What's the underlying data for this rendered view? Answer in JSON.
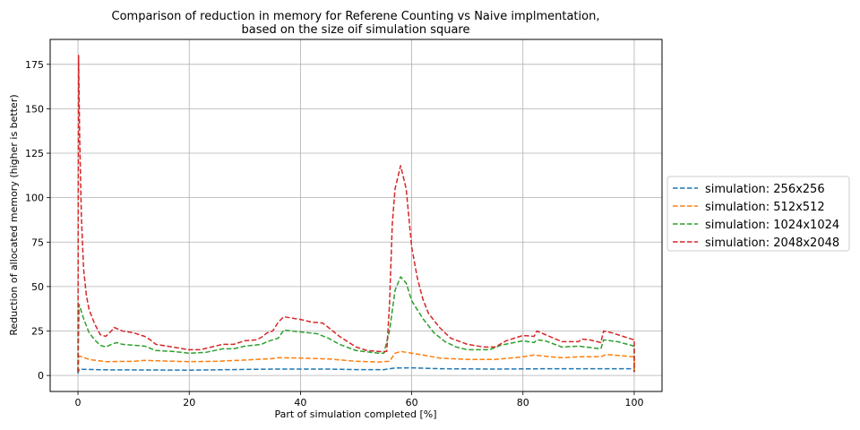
{
  "chart_data": {
    "type": "line",
    "title": [
      "Comparison of reduction in memory for Referene Counting vs Naive implmentation,",
      "based on the size oif simulation square"
    ],
    "xlabel": "Part of simulation completed [%]",
    "ylabel": "Reduction of allocated memory (higher is better)",
    "xlim": [
      -5,
      105
    ],
    "ylim": [
      -9,
      189
    ],
    "xticks": [
      0,
      20,
      40,
      60,
      80,
      100
    ],
    "yticks": [
      0,
      25,
      50,
      75,
      100,
      125,
      150,
      175
    ],
    "grid": true,
    "legend_position": "outside-right",
    "line_style": "dashed",
    "series": [
      {
        "name": "simulation: 256x256",
        "color": "#1f77b4",
        "points": [
          [
            0,
            1
          ],
          [
            0.2,
            3.5
          ],
          [
            5,
            3.2
          ],
          [
            20,
            3
          ],
          [
            35,
            3.6
          ],
          [
            45,
            3.6
          ],
          [
            50,
            3.3
          ],
          [
            55,
            3.3
          ],
          [
            57,
            4.2
          ],
          [
            60,
            4.3
          ],
          [
            65,
            3.8
          ],
          [
            75,
            3.6
          ],
          [
            85,
            3.8
          ],
          [
            95,
            3.8
          ],
          [
            100,
            3.8
          ],
          [
            100,
            2
          ]
        ]
      },
      {
        "name": "simulation: 512x512",
        "color": "#ff7f0e",
        "points": [
          [
            0,
            2
          ],
          [
            0.2,
            11
          ],
          [
            2,
            9
          ],
          [
            5,
            7.8
          ],
          [
            10,
            8
          ],
          [
            12,
            8.5
          ],
          [
            15,
            8.2
          ],
          [
            20,
            7.8
          ],
          [
            25,
            8
          ],
          [
            30,
            8.7
          ],
          [
            35,
            9.5
          ],
          [
            36,
            10
          ],
          [
            40,
            9.8
          ],
          [
            45,
            9.3
          ],
          [
            50,
            8
          ],
          [
            54,
            7.6
          ],
          [
            56,
            8
          ],
          [
            57,
            12.5
          ],
          [
            58,
            13.5
          ],
          [
            60,
            12.5
          ],
          [
            62,
            11.5
          ],
          [
            65,
            9.8
          ],
          [
            70,
            9
          ],
          [
            75,
            9
          ],
          [
            80,
            10.5
          ],
          [
            82,
            11.5
          ],
          [
            85,
            10.5
          ],
          [
            87,
            10
          ],
          [
            90,
            10.5
          ],
          [
            94,
            10.5
          ],
          [
            95,
            11.8
          ],
          [
            100,
            10.5
          ],
          [
            100,
            2
          ]
        ]
      },
      {
        "name": "simulation: 1024x1024",
        "color": "#2ca02c",
        "points": [
          [
            0,
            2
          ],
          [
            0.2,
            40
          ],
          [
            1,
            32
          ],
          [
            2,
            24
          ],
          [
            3,
            20
          ],
          [
            4,
            17
          ],
          [
            5,
            16
          ],
          [
            6,
            17.5
          ],
          [
            7,
            18.5
          ],
          [
            8,
            17.5
          ],
          [
            12,
            16.5
          ],
          [
            14,
            14
          ],
          [
            17,
            13.5
          ],
          [
            20,
            12.5
          ],
          [
            23,
            13
          ],
          [
            26,
            15
          ],
          [
            28,
            15
          ],
          [
            30,
            16.5
          ],
          [
            33,
            17.5
          ],
          [
            34,
            19
          ],
          [
            36,
            21
          ],
          [
            37,
            25.5
          ],
          [
            40,
            24.5
          ],
          [
            43,
            23.5
          ],
          [
            45,
            21
          ],
          [
            47,
            17.5
          ],
          [
            50,
            14
          ],
          [
            54,
            12.5
          ],
          [
            55,
            12.5
          ],
          [
            56,
            25
          ],
          [
            57,
            48
          ],
          [
            58,
            55.5
          ],
          [
            59,
            52
          ],
          [
            60,
            42
          ],
          [
            62,
            32
          ],
          [
            64,
            24
          ],
          [
            66,
            19
          ],
          [
            68,
            16
          ],
          [
            70,
            14.5
          ],
          [
            74,
            14.5
          ],
          [
            76,
            17
          ],
          [
            80,
            19.5
          ],
          [
            82,
            18.5
          ],
          [
            82.5,
            20
          ],
          [
            84,
            19.5
          ],
          [
            87,
            16
          ],
          [
            90,
            16.5
          ],
          [
            94,
            15
          ],
          [
            94.5,
            20
          ],
          [
            97,
            19
          ],
          [
            100,
            16.5
          ],
          [
            100,
            2
          ]
        ]
      },
      {
        "name": "simulation: 2048x2048",
        "color": "#d62728",
        "points": [
          [
            0,
            2
          ],
          [
            0.1,
            180
          ],
          [
            0.3,
            135
          ],
          [
            0.6,
            90
          ],
          [
            1,
            60
          ],
          [
            1.5,
            45
          ],
          [
            2,
            37
          ],
          [
            3,
            29
          ],
          [
            4,
            23
          ],
          [
            5,
            22
          ],
          [
            6,
            25
          ],
          [
            6.5,
            27
          ],
          [
            8,
            25
          ],
          [
            10,
            24
          ],
          [
            12,
            22
          ],
          [
            13,
            20
          ],
          [
            14,
            17.5
          ],
          [
            16,
            16.5
          ],
          [
            18,
            15.5
          ],
          [
            20,
            14.5
          ],
          [
            22,
            14.5
          ],
          [
            24,
            16
          ],
          [
            26,
            17.5
          ],
          [
            28,
            17.5
          ],
          [
            30,
            19.5
          ],
          [
            32,
            20
          ],
          [
            33,
            21.5
          ],
          [
            34,
            24
          ],
          [
            35,
            25
          ],
          [
            36,
            30
          ],
          [
            37,
            33
          ],
          [
            40,
            31.5
          ],
          [
            42,
            30
          ],
          [
            44,
            29.5
          ],
          [
            45,
            27
          ],
          [
            47,
            22
          ],
          [
            50,
            16
          ],
          [
            52,
            14
          ],
          [
            55,
            13.3
          ],
          [
            55.5,
            13.5
          ],
          [
            56,
            40
          ],
          [
            56.5,
            85
          ],
          [
            57,
            105
          ],
          [
            58,
            118
          ],
          [
            59,
            105
          ],
          [
            60,
            72
          ],
          [
            61,
            55
          ],
          [
            62,
            43
          ],
          [
            63,
            35
          ],
          [
            65,
            27
          ],
          [
            67,
            21
          ],
          [
            70,
            17.5
          ],
          [
            73,
            16
          ],
          [
            75,
            16
          ],
          [
            77,
            19.5
          ],
          [
            80,
            22.5
          ],
          [
            82,
            22
          ],
          [
            82.5,
            25
          ],
          [
            84,
            23
          ],
          [
            87,
            19
          ],
          [
            90,
            19
          ],
          [
            90.5,
            20.5
          ],
          [
            92,
            20
          ],
          [
            94,
            18.5
          ],
          [
            94.5,
            25
          ],
          [
            96,
            24
          ],
          [
            98,
            22
          ],
          [
            100,
            20
          ],
          [
            100,
            2
          ]
        ]
      }
    ]
  }
}
